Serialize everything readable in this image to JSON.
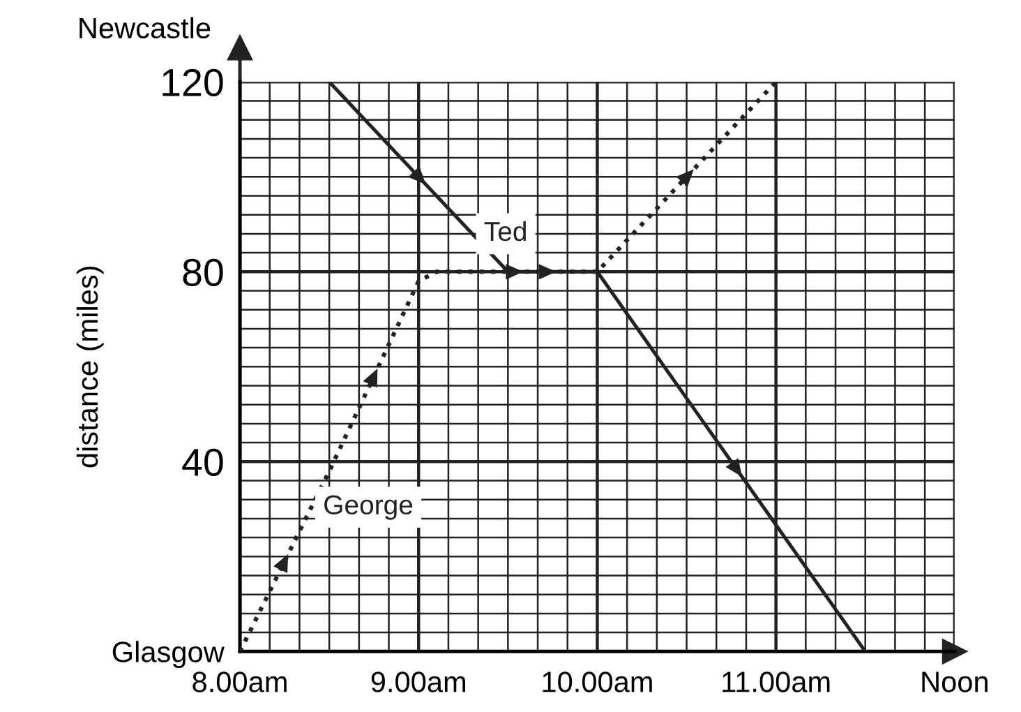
{
  "chart_data": {
    "type": "line",
    "ylabel": "distance (miles)",
    "series": [
      {
        "name": "Ted",
        "color": "#222222",
        "line_style": "solid",
        "x": [
          8.5,
          9.5,
          10,
          11.5
        ],
        "values": [
          120,
          80,
          80,
          0
        ]
      },
      {
        "name": "George",
        "color": "#222222",
        "line_style": "dotted",
        "x": [
          8,
          8.5,
          9,
          9.1,
          10,
          11
        ],
        "values": [
          0,
          38,
          78,
          80,
          80,
          120
        ]
      }
    ],
    "xlim": [
      8,
      12
    ],
    "ylim": [
      0,
      120
    ],
    "xticks": [
      {
        "value": 8,
        "label": "8.00am"
      },
      {
        "value": 9,
        "label": "9.00am"
      },
      {
        "value": 10,
        "label": "10.00am"
      },
      {
        "value": 11,
        "label": "11.00am"
      },
      {
        "value": 12,
        "label": "Noon"
      }
    ],
    "yticks": [
      {
        "value": 0,
        "label": "Glasgow"
      },
      40,
      80,
      120
    ],
    "annotations": [
      "Newcastle"
    ],
    "grid": true,
    "legend": false
  }
}
